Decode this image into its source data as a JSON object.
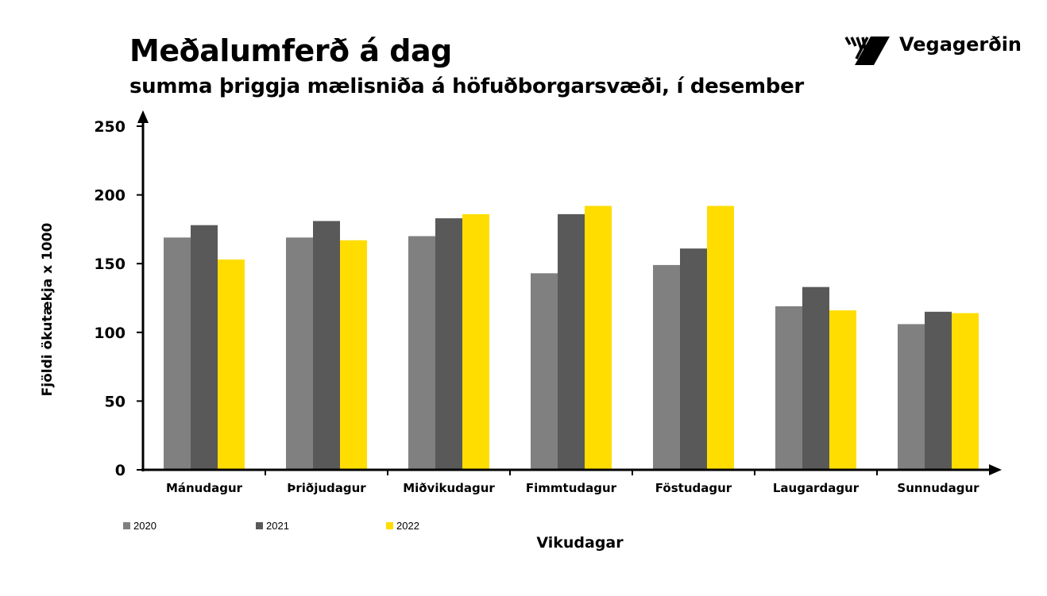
{
  "title": "Meðalumferð á dag",
  "subtitle": "summa þriggja mælisniða á höfuðborgarsvæði, í desember",
  "brand": "Vegagerðin",
  "chart_data": {
    "type": "bar",
    "title": "Meðalumferð á dag",
    "subtitle": "summa þriggja mælisniða á höfuðborgarsvæði, í desember",
    "xlabel": "Vikudagar",
    "ylabel": "Fjöldi ökutækja x 1000",
    "ylim": [
      0,
      250
    ],
    "yticks": [
      "0",
      "50",
      "100",
      "150",
      "200",
      "250"
    ],
    "grid": false,
    "legend": "bottom-left",
    "categories": [
      "Mánudagur",
      "Þriðjudagur",
      "Miðvikudagur",
      "Fimmtudagur",
      "Föstudagur",
      "Laugardagur",
      "Sunnudagur"
    ],
    "series": [
      {
        "name": "2020",
        "color": "#808080",
        "values": [
          169,
          169,
          170,
          143,
          149,
          119,
          106
        ]
      },
      {
        "name": "2021",
        "color": "#595959",
        "values": [
          178,
          181,
          183,
          186,
          161,
          133,
          115
        ]
      },
      {
        "name": "2022",
        "color": "#FFDD00",
        "values": [
          153,
          167,
          186,
          192,
          192,
          116,
          114
        ]
      }
    ]
  }
}
